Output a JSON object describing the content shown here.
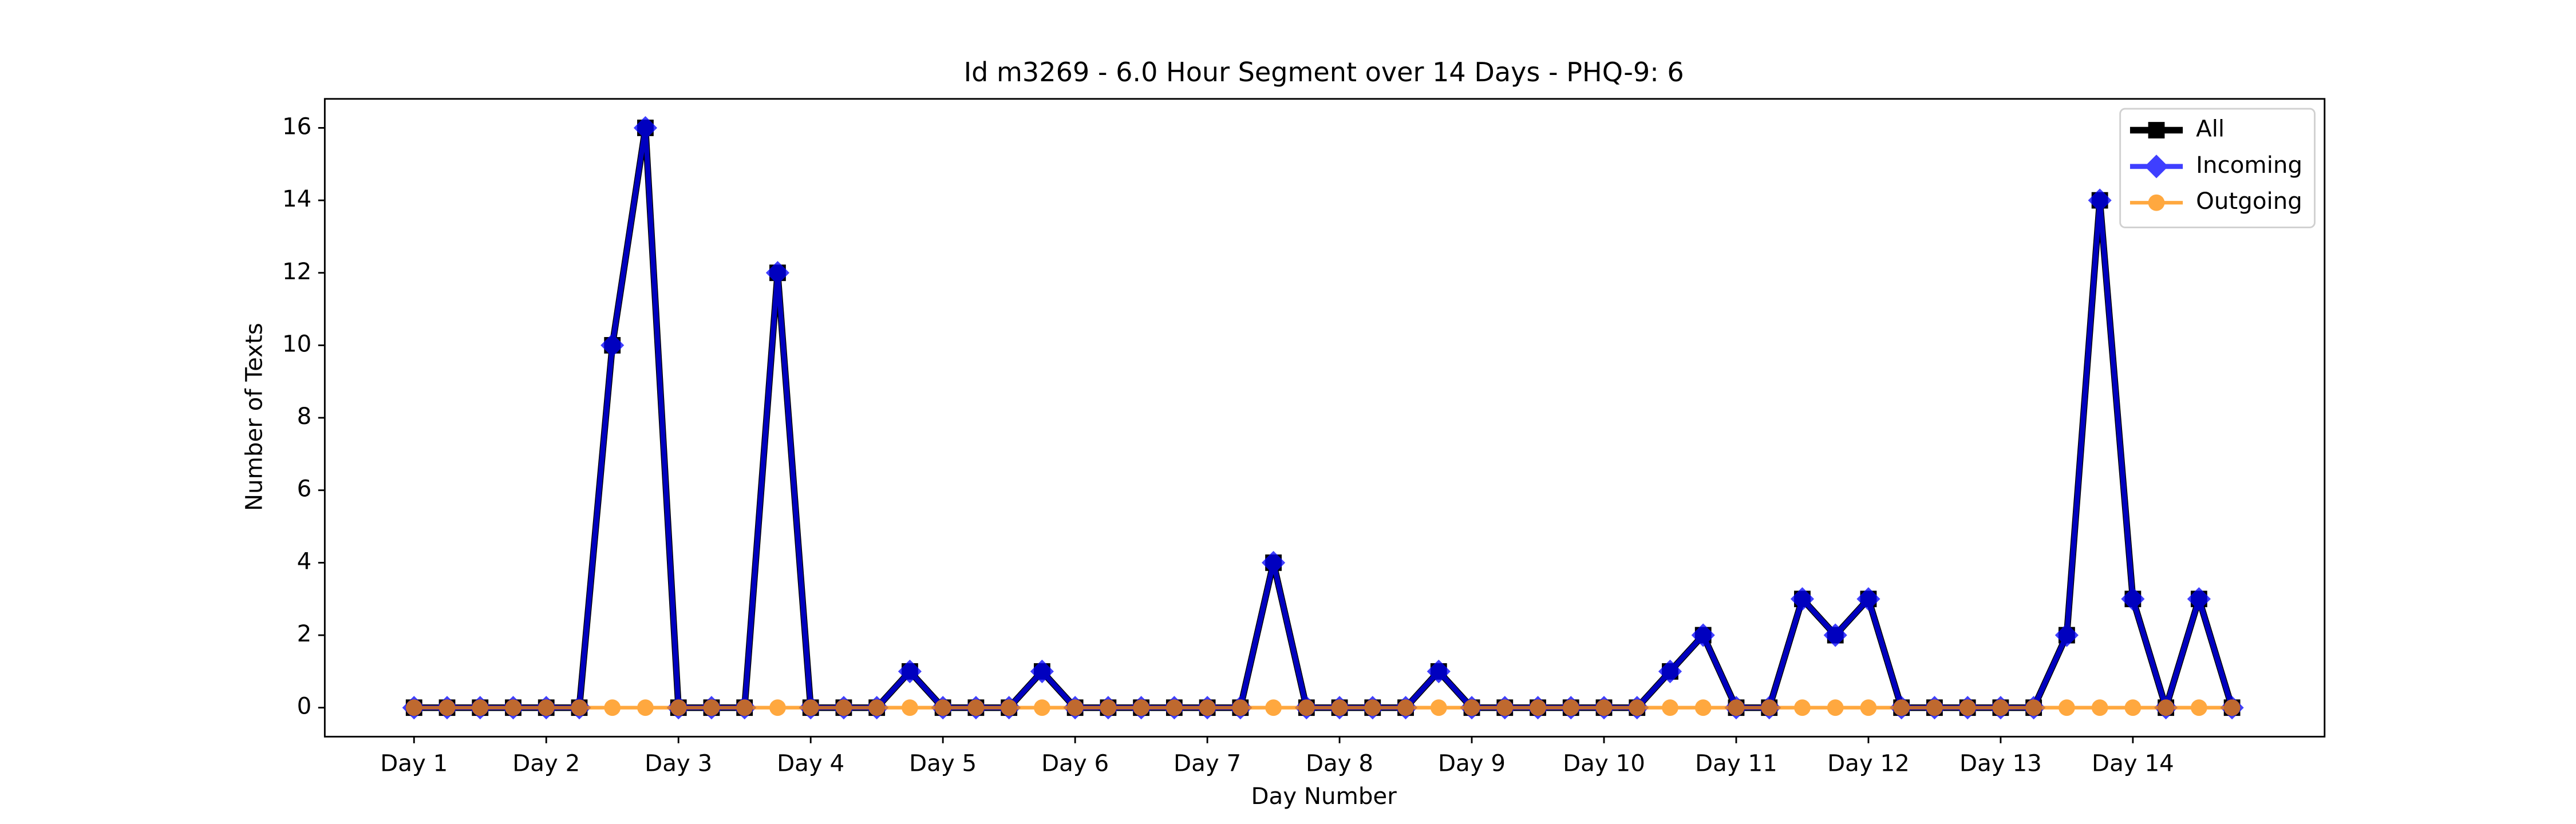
{
  "chart_data": {
    "type": "line",
    "title": "Id m3269 - 6.0 Hour Segment over 14 Days - PHQ-9: 6",
    "x_label": "Day Number",
    "y_label": "Number of Texts",
    "x": [
      0,
      1,
      2,
      3,
      4,
      5,
      6,
      7,
      8,
      9,
      10,
      11,
      12,
      13,
      14,
      15,
      16,
      17,
      18,
      19,
      20,
      21,
      22,
      23,
      24,
      25,
      26,
      27,
      28,
      29,
      30,
      31,
      32,
      33,
      34,
      35,
      36,
      37,
      38,
      39,
      40,
      41,
      42,
      43,
      44,
      45,
      46,
      47,
      48,
      49,
      50,
      51,
      52,
      53,
      54,
      55
    ],
    "series": [
      {
        "name": "All",
        "color": "#000000",
        "marker": "square",
        "values": [
          0,
          0,
          0,
          0,
          0,
          0,
          10,
          16,
          0,
          0,
          0,
          12,
          0,
          0,
          0,
          1,
          0,
          0,
          0,
          1,
          0,
          0,
          0,
          0,
          0,
          0,
          4,
          0,
          0,
          0,
          0,
          1,
          0,
          0,
          0,
          0,
          0,
          0,
          1,
          2,
          0,
          0,
          3,
          2,
          3,
          0,
          0,
          0,
          0,
          0,
          2,
          14,
          3,
          0,
          3,
          0
        ]
      },
      {
        "name": "Incoming",
        "color": "#0000ff",
        "marker": "diamond",
        "values": [
          0,
          0,
          0,
          0,
          0,
          0,
          10,
          16,
          0,
          0,
          0,
          12,
          0,
          0,
          0,
          1,
          0,
          0,
          0,
          1,
          0,
          0,
          0,
          0,
          0,
          0,
          4,
          0,
          0,
          0,
          0,
          1,
          0,
          0,
          0,
          0,
          0,
          0,
          1,
          2,
          0,
          0,
          3,
          2,
          3,
          0,
          0,
          0,
          0,
          0,
          2,
          14,
          3,
          0,
          3,
          0
        ]
      },
      {
        "name": "Outgoing",
        "color": "#ff8c00",
        "marker": "circle",
        "values": [
          0,
          0,
          0,
          0,
          0,
          0,
          0,
          0,
          0,
          0,
          0,
          0,
          0,
          0,
          0,
          0,
          0,
          0,
          0,
          0,
          0,
          0,
          0,
          0,
          0,
          0,
          0,
          0,
          0,
          0,
          0,
          0,
          0,
          0,
          0,
          0,
          0,
          0,
          0,
          0,
          0,
          0,
          0,
          0,
          0,
          0,
          0,
          0,
          0,
          0,
          0,
          0,
          0,
          0,
          0,
          0
        ]
      }
    ],
    "xlim": [
      -2.7,
      57.8
    ],
    "xticks": [
      {
        "value": 0,
        "label": "Day 1"
      },
      {
        "value": 4,
        "label": "Day 2"
      },
      {
        "value": 8,
        "label": "Day 3"
      },
      {
        "value": 12,
        "label": "Day 4"
      },
      {
        "value": 16,
        "label": "Day 5"
      },
      {
        "value": 20,
        "label": "Day 6"
      },
      {
        "value": 24,
        "label": "Day 7"
      },
      {
        "value": 28,
        "label": "Day 8"
      },
      {
        "value": 32,
        "label": "Day 9"
      },
      {
        "value": 36,
        "label": "Day 10"
      },
      {
        "value": 40,
        "label": "Day 11"
      },
      {
        "value": 44,
        "label": "Day 12"
      },
      {
        "value": 48,
        "label": "Day 13"
      },
      {
        "value": 52,
        "label": "Day 14"
      }
    ],
    "ylim": [
      -0.8,
      16.8
    ],
    "yticks": [
      0,
      2,
      4,
      6,
      8,
      10,
      12,
      14,
      16
    ],
    "legend": "upper right",
    "grid": false
  }
}
